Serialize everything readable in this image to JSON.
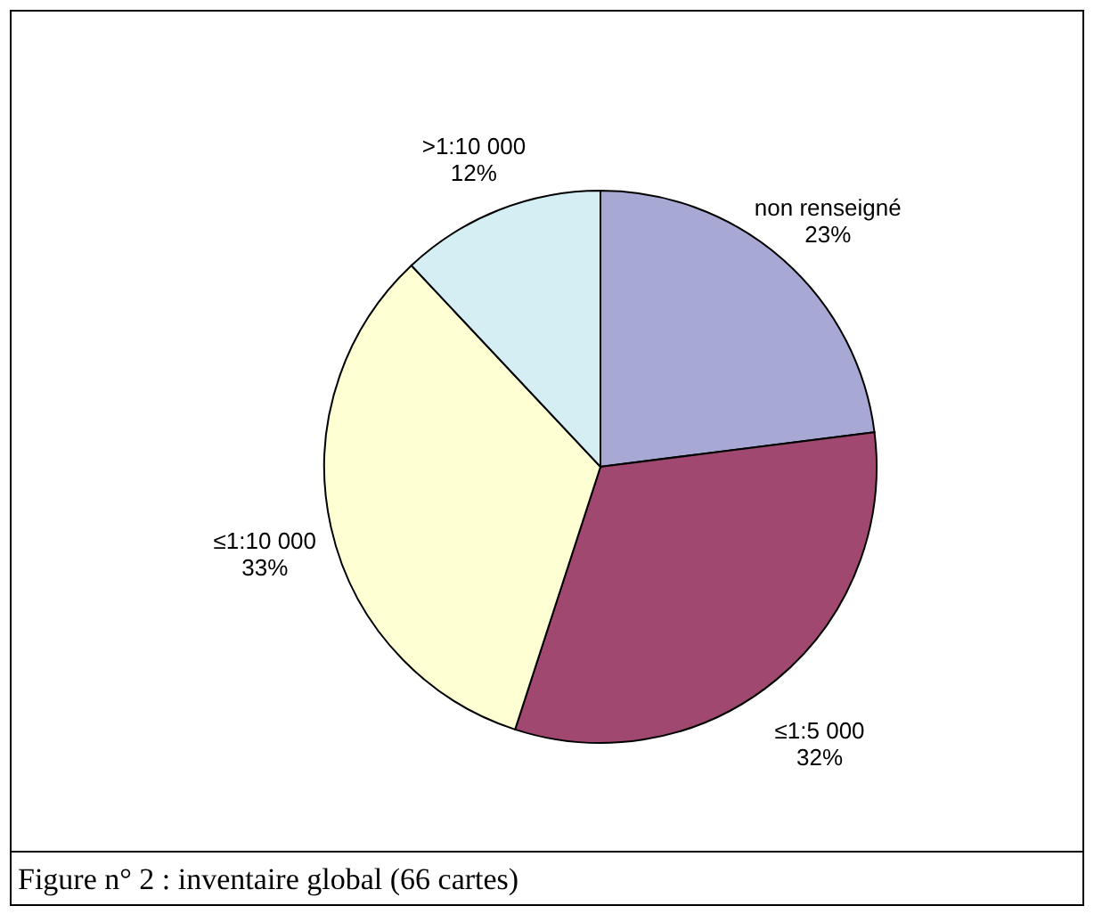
{
  "chart_data": {
    "type": "pie",
    "categories": [
      "non renseigné",
      "≤1:5 000",
      "≤1:10 000",
      ">1:10 000"
    ],
    "values": [
      23,
      32,
      33,
      12
    ],
    "value_labels": [
      "23%",
      "32%",
      "33%",
      "12%"
    ],
    "colors": [
      "#a8a8d4",
      "#a04870",
      "#ffffd4",
      "#d4eef4"
    ],
    "annotations": [
      "Figure n° 2 : inventaire global (66 cartes)"
    ]
  }
}
